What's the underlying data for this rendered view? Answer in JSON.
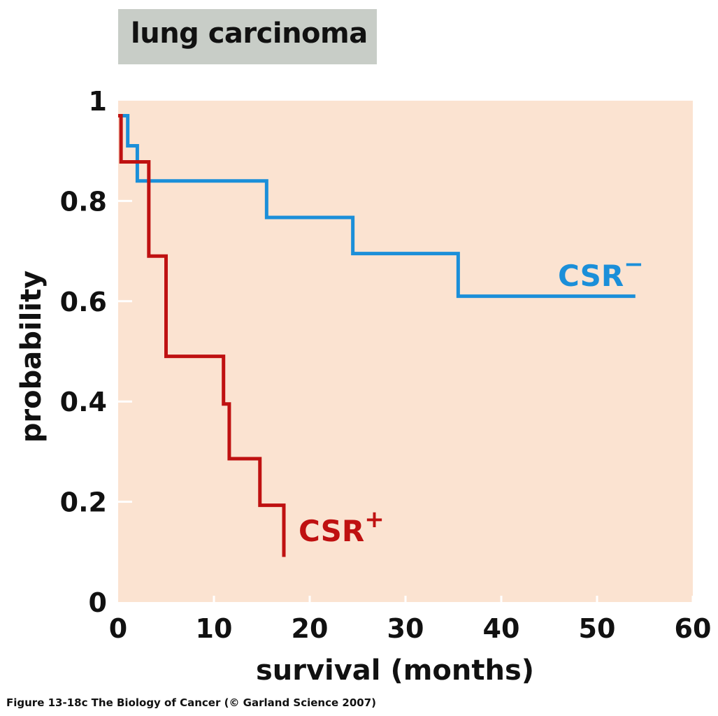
{
  "chart_data": {
    "type": "line",
    "step": true,
    "title": "lung carcinoma",
    "xlabel": "survival (months)",
    "ylabel": "probability",
    "xlim": [
      0,
      60
    ],
    "ylim": [
      0,
      1
    ],
    "xticks": [
      0,
      10,
      20,
      30,
      40,
      50,
      60
    ],
    "yticks": [
      0,
      0.2,
      0.4,
      0.6,
      0.8,
      1
    ],
    "ytick_labels": [
      "0",
      "0.2",
      "0.4",
      "0.6",
      "0.8",
      "1"
    ],
    "grid": false,
    "series": [
      {
        "name": "CSR",
        "name_suffix": "−",
        "color": "#1b8fd9",
        "x": [
          0,
          1,
          2,
          15.5,
          24.5,
          35.5,
          54
        ],
        "y": [
          0.97,
          0.91,
          0.84,
          0.767,
          0.695,
          0.61,
          0.61
        ]
      },
      {
        "name": "CSR",
        "name_suffix": "+",
        "color": "#bf1111",
        "x": [
          0,
          0.3,
          3.2,
          5,
          11,
          11.6,
          14.8,
          17.3
        ],
        "y": [
          0.97,
          0.878,
          0.69,
          0.49,
          0.395,
          0.286,
          0.193,
          0.09
        ]
      }
    ],
    "plot_background": "#fbe3d1"
  },
  "caption": "Figure 13-18c  The Biology of Cancer (© Garland Science 2007)"
}
